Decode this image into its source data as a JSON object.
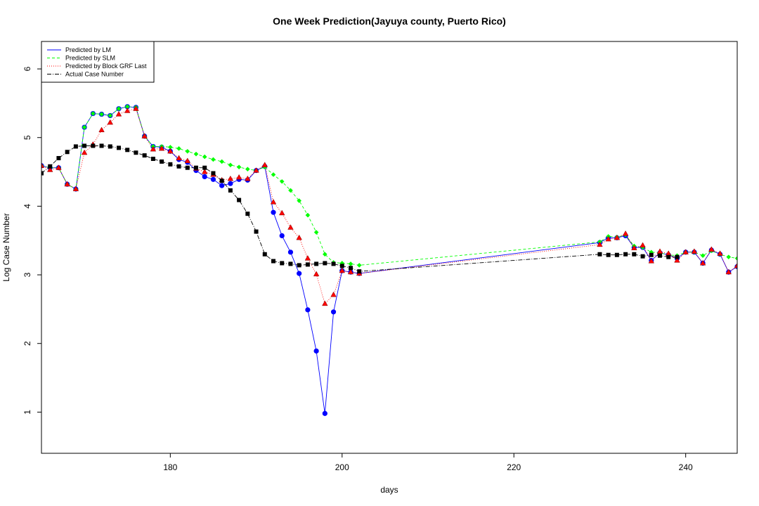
{
  "chart_data": {
    "type": "line",
    "title": "One Week Prediction(Jayuya county, Puerto Rico)",
    "xlabel": "days",
    "ylabel": "Log Case Number",
    "xlim": [
      165,
      246
    ],
    "ylim": [
      0.4,
      6.4
    ],
    "xticks": [
      180,
      200,
      220,
      240
    ],
    "yticks": [
      1,
      2,
      3,
      4,
      5,
      6
    ],
    "legend_position": "top-left",
    "grid": false,
    "x": [
      165,
      166,
      167,
      168,
      169,
      170,
      171,
      172,
      173,
      174,
      175,
      176,
      177,
      178,
      179,
      180,
      181,
      182,
      183,
      184,
      185,
      186,
      187,
      188,
      189,
      190,
      191,
      192,
      193,
      194,
      195,
      196,
      197,
      198,
      199,
      200,
      201,
      202,
      230,
      231,
      232,
      233,
      234,
      235,
      236,
      237,
      238,
      239,
      240,
      241,
      242,
      243,
      244,
      245,
      246
    ],
    "series": [
      {
        "name": "Predicted by LM",
        "color": "#0000ff",
        "line": "solid",
        "marker": "circle",
        "values": [
          4.59,
          4.56,
          4.56,
          4.32,
          4.25,
          5.15,
          5.35,
          5.34,
          5.32,
          5.42,
          5.45,
          5.44,
          5.02,
          4.87,
          4.86,
          4.8,
          4.68,
          4.64,
          4.52,
          4.43,
          4.39,
          4.3,
          4.33,
          4.39,
          4.38,
          4.52,
          4.58,
          3.91,
          3.57,
          3.33,
          3.02,
          2.49,
          1.89,
          0.98,
          2.46,
          3.06,
          3.04,
          3.02,
          3.47,
          3.54,
          3.54,
          3.57,
          3.4,
          3.4,
          3.21,
          3.32,
          3.29,
          3.24,
          3.33,
          3.33,
          3.17,
          3.36,
          3.3,
          3.04,
          3.12
        ]
      },
      {
        "name": "Predicted by SLM",
        "color": "#00ff00",
        "line": "dashed",
        "marker": "diamond",
        "values": [
          4.59,
          4.56,
          4.56,
          4.32,
          4.25,
          5.15,
          5.35,
          5.34,
          5.32,
          5.42,
          5.45,
          5.44,
          5.02,
          4.87,
          4.87,
          4.86,
          4.84,
          4.8,
          4.76,
          4.72,
          4.68,
          4.65,
          4.6,
          4.57,
          4.54,
          4.52,
          4.57,
          4.46,
          4.36,
          4.23,
          4.08,
          3.87,
          3.62,
          3.3,
          3.18,
          3.17,
          3.16,
          3.14,
          3.48,
          3.56,
          3.55,
          3.58,
          3.42,
          3.4,
          3.33,
          3.32,
          3.29,
          3.28,
          3.33,
          3.33,
          3.28,
          3.35,
          3.3,
          3.26,
          3.24
        ]
      },
      {
        "name": "Predicted by Block GRF Last",
        "color": "#ff0000",
        "line": "dotted",
        "marker": "triangle",
        "values": [
          4.59,
          4.53,
          4.56,
          4.32,
          4.25,
          4.78,
          4.9,
          5.11,
          5.22,
          5.34,
          5.39,
          5.42,
          5.02,
          4.83,
          4.84,
          4.8,
          4.7,
          4.66,
          4.55,
          4.5,
          4.46,
          4.38,
          4.4,
          4.42,
          4.4,
          4.52,
          4.6,
          4.06,
          3.9,
          3.69,
          3.54,
          3.24,
          3.01,
          2.58,
          2.71,
          3.06,
          3.04,
          3.02,
          3.44,
          3.52,
          3.54,
          3.6,
          3.39,
          3.43,
          3.2,
          3.34,
          3.31,
          3.21,
          3.33,
          3.34,
          3.17,
          3.37,
          3.31,
          3.04,
          3.13
        ]
      },
      {
        "name": "Actual Case Number",
        "color": "#000000",
        "line": "dotdash",
        "marker": "square",
        "values": [
          4.48,
          4.58,
          4.7,
          4.79,
          4.87,
          4.88,
          4.88,
          4.88,
          4.87,
          4.85,
          4.82,
          4.78,
          4.74,
          4.69,
          4.65,
          4.61,
          4.58,
          4.56,
          4.56,
          4.56,
          4.48,
          4.37,
          4.23,
          4.09,
          3.89,
          3.63,
          3.3,
          3.2,
          3.17,
          3.16,
          3.14,
          3.15,
          3.16,
          3.17,
          3.16,
          3.13,
          3.1,
          3.05,
          3.3,
          3.29,
          3.29,
          3.3,
          3.3,
          3.27,
          3.29,
          3.28,
          3.26,
          3.26,
          null,
          null,
          null,
          null,
          null,
          null,
          null
        ]
      }
    ]
  }
}
